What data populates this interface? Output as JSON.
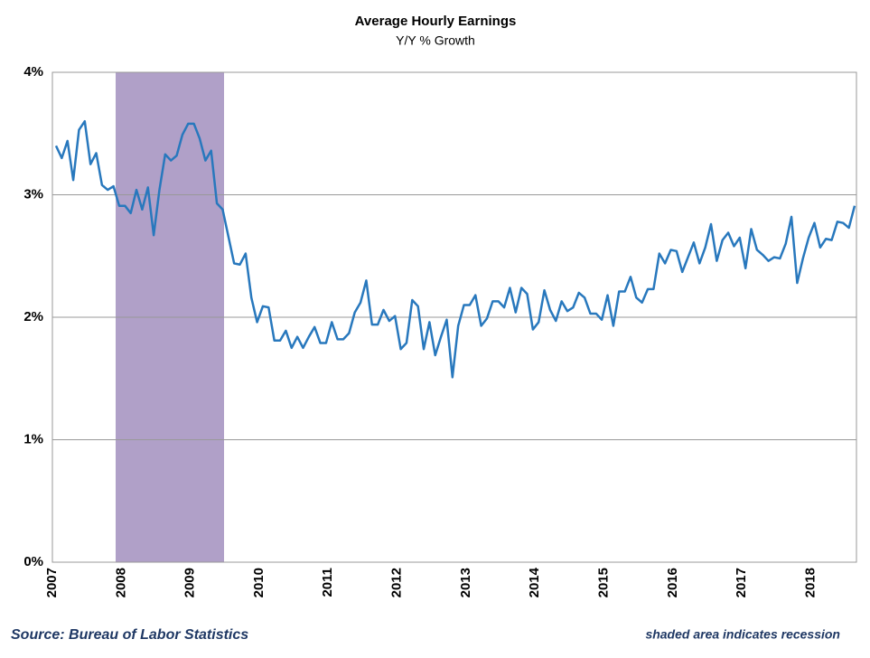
{
  "chart_data": {
    "type": "line",
    "title": "Average Hourly Earnings",
    "subtitle": "Y/Y % Growth",
    "source": "Source: Bureau of Labor Statistics",
    "note": "shaded area indicates recession",
    "categories": [
      "2007",
      null,
      null,
      null,
      null,
      null,
      null,
      null,
      null,
      null,
      null,
      null,
      "2008",
      null,
      null,
      null,
      null,
      null,
      null,
      null,
      null,
      null,
      null,
      null,
      "2009",
      null,
      null,
      null,
      null,
      null,
      null,
      null,
      null,
      null,
      null,
      null,
      "2010",
      null,
      null,
      null,
      null,
      null,
      null,
      null,
      null,
      null,
      null,
      null,
      "2011",
      null,
      null,
      null,
      null,
      null,
      null,
      null,
      null,
      null,
      null,
      null,
      "2012",
      null,
      null,
      null,
      null,
      null,
      null,
      null,
      null,
      null,
      null,
      null,
      "2013",
      null,
      null,
      null,
      null,
      null,
      null,
      null,
      null,
      null,
      null,
      null,
      "2014",
      null,
      null,
      null,
      null,
      null,
      null,
      null,
      null,
      null,
      null,
      null,
      "2015",
      null,
      null,
      null,
      null,
      null,
      null,
      null,
      null,
      null,
      null,
      null,
      "2016",
      null,
      null,
      null,
      null,
      null,
      null,
      null,
      null,
      null,
      null,
      null,
      "2017",
      null,
      null,
      null,
      null,
      null,
      null,
      null,
      null,
      null,
      null,
      null,
      "2018",
      null,
      null,
      null,
      null,
      null,
      null,
      null
    ],
    "values": [
      3.4,
      3.3,
      3.44,
      3.12,
      3.53,
      3.6,
      3.25,
      3.34,
      3.08,
      3.04,
      3.07,
      2.91,
      2.91,
      2.85,
      3.04,
      2.88,
      3.06,
      2.67,
      3.04,
      3.33,
      3.28,
      3.32,
      3.49,
      3.58,
      3.58,
      3.46,
      3.28,
      3.36,
      2.93,
      2.88,
      2.66,
      2.44,
      2.43,
      2.52,
      2.16,
      1.96,
      2.09,
      2.08,
      1.81,
      1.81,
      1.89,
      1.75,
      1.84,
      1.75,
      1.84,
      1.92,
      1.79,
      1.79,
      1.96,
      1.82,
      1.82,
      1.87,
      2.04,
      2.12,
      2.3,
      1.94,
      1.94,
      2.06,
      1.97,
      2.01,
      1.74,
      1.79,
      2.14,
      2.09,
      1.74,
      1.96,
      1.69,
      1.84,
      1.98,
      1.51,
      1.93,
      2.1,
      2.1,
      2.18,
      1.93,
      1.99,
      2.13,
      2.13,
      2.08,
      2.24,
      2.04,
      2.24,
      2.19,
      1.9,
      1.96,
      2.22,
      2.06,
      1.97,
      2.13,
      2.05,
      2.08,
      2.2,
      2.16,
      2.03,
      2.03,
      1.98,
      2.18,
      1.93,
      2.21,
      2.21,
      2.33,
      2.16,
      2.12,
      2.23,
      2.23,
      2.52,
      2.44,
      2.55,
      2.54,
      2.37,
      2.49,
      2.61,
      2.44,
      2.57,
      2.76,
      2.46,
      2.63,
      2.69,
      2.58,
      2.65,
      2.4,
      2.72,
      2.55,
      2.51,
      2.46,
      2.49,
      2.48,
      2.6,
      2.82,
      2.28,
      2.48,
      2.65,
      2.77,
      2.57,
      2.64,
      2.63,
      2.78,
      2.77,
      2.73,
      2.91
    ],
    "color": "#2878bd",
    "ylim": [
      0,
      4
    ],
    "yticks": [
      {
        "value": 0,
        "label": "0%"
      },
      {
        "value": 1,
        "label": "1%"
      },
      {
        "value": 2,
        "label": "2%"
      },
      {
        "value": 3,
        "label": "3%"
      },
      {
        "value": 4,
        "label": "4%"
      }
    ],
    "grid": true
  }
}
